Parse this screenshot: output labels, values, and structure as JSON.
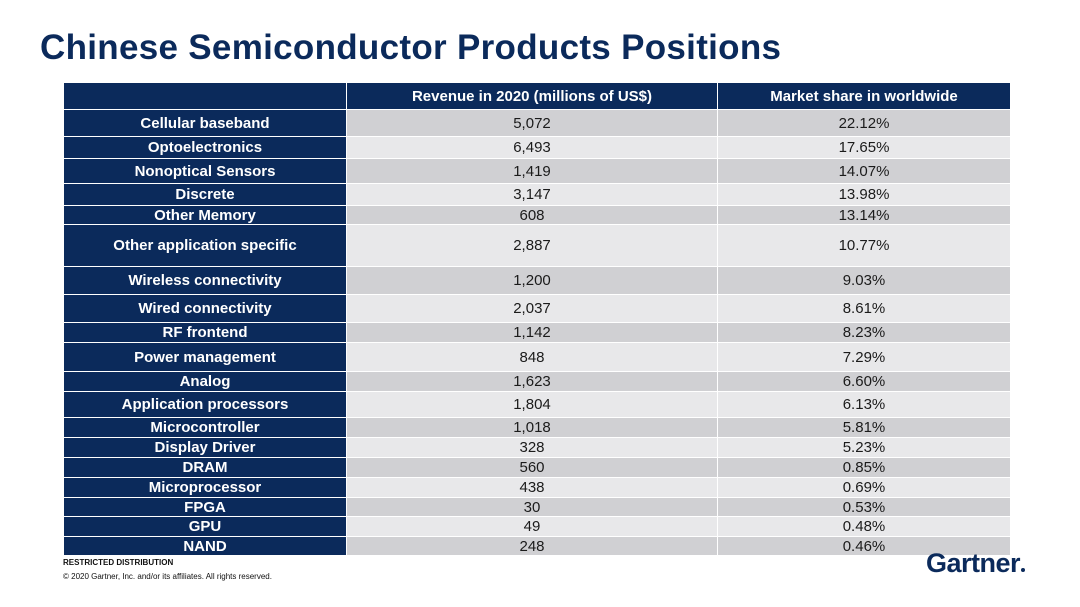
{
  "title": "Chinese Semiconductor Products Positions",
  "table": {
    "headers": [
      "",
      "Revenue in 2020 (millions of US$)",
      "Market share in worldwide"
    ],
    "rows": [
      {
        "label": "Cellular baseband",
        "revenue": "5,072",
        "share": "22.12%"
      },
      {
        "label": "Optoelectronics",
        "revenue": "6,493",
        "share": "17.65%"
      },
      {
        "label": "Nonoptical Sensors",
        "revenue": "1,419",
        "share": "14.07%"
      },
      {
        "label": "Discrete",
        "revenue": "3,147",
        "share": "13.98%"
      },
      {
        "label": "Other Memory",
        "revenue": "608",
        "share": "13.14%"
      },
      {
        "label": "Other application specific",
        "revenue": "2,887",
        "share": "10.77%"
      },
      {
        "label": "Wireless connectivity",
        "revenue": "1,200",
        "share": "9.03%"
      },
      {
        "label": "Wired connectivity",
        "revenue": "2,037",
        "share": "8.61%"
      },
      {
        "label": "RF frontend",
        "revenue": "1,142",
        "share": "8.23%"
      },
      {
        "label": "Power management",
        "revenue": "848",
        "share": "7.29%"
      },
      {
        "label": "Analog",
        "revenue": "1,623",
        "share": "6.60%"
      },
      {
        "label": "Application processors",
        "revenue": "1,804",
        "share": "6.13%"
      },
      {
        "label": "Microcontroller",
        "revenue": "1,018",
        "share": "5.81%"
      },
      {
        "label": "Display Driver",
        "revenue": "328",
        "share": "5.23%"
      },
      {
        "label": "DRAM",
        "revenue": "560",
        "share": "0.85%"
      },
      {
        "label": "Microprocessor",
        "revenue": "438",
        "share": "0.69%"
      },
      {
        "label": "FPGA",
        "revenue": "30",
        "share": "0.53%"
      },
      {
        "label": "GPU",
        "revenue": "49",
        "share": "0.48%"
      },
      {
        "label": "NAND",
        "revenue": "248",
        "share": "0.46%"
      }
    ]
  },
  "footer": {
    "restricted": "RESTRICTED DISTRIBUTION",
    "copyright": "© 2020 Gartner, Inc. and/or its affiliates. All rights reserved."
  },
  "logo": {
    "text": "Gartner"
  },
  "colors": {
    "navy": "#0b2a5b",
    "row_dark": "#d0d0d3",
    "row_light": "#e8e8ea"
  }
}
